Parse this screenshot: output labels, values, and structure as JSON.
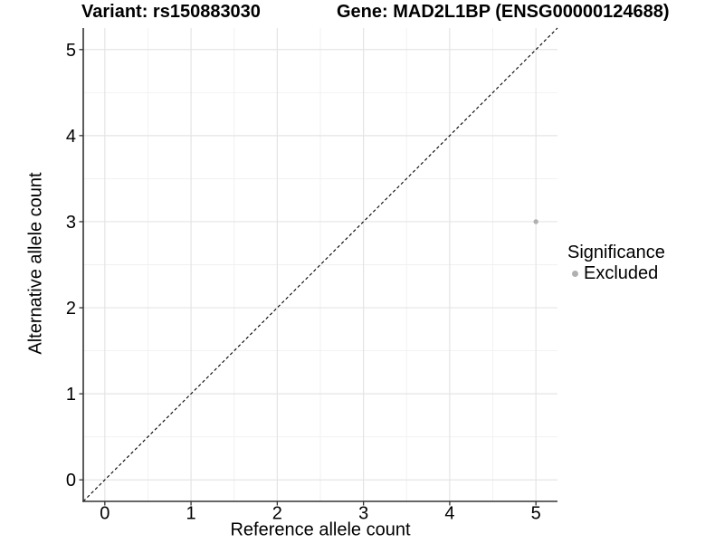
{
  "titles": {
    "variant": "Variant: rs150883030",
    "gene": "Gene: MAD2L1BP (ENSG00000124688)"
  },
  "chart_data": {
    "type": "scatter",
    "title_left": "Variant: rs150883030",
    "title_right": "Gene: MAD2L1BP (ENSG00000124688)",
    "xlabel": "Reference allele count",
    "ylabel": "Alternative allele count",
    "xlim": [
      -0.25,
      5.25
    ],
    "ylim": [
      -0.25,
      5.25
    ],
    "xticks": [
      0,
      1,
      2,
      3,
      4,
      5
    ],
    "yticks": [
      0,
      1,
      2,
      3,
      4,
      5
    ],
    "minor_xticks": [
      0.5,
      1.5,
      2.5,
      3.5,
      4.5
    ],
    "minor_yticks": [
      0.5,
      1.5,
      2.5,
      3.5,
      4.5
    ],
    "grid": true,
    "points": [
      {
        "x": 5,
        "y": 3,
        "series": "Excluded"
      }
    ],
    "identity_line": {
      "style": "dashed",
      "from": [
        -0.25,
        -0.25
      ],
      "to": [
        5.25,
        5.25
      ]
    },
    "legend": {
      "title": "Significance",
      "position": "right",
      "items": [
        {
          "label": "Excluded",
          "color": "#b0b0b0"
        }
      ]
    },
    "colors": {
      "point": "#b0b0b0",
      "grid_major": "#e4e4e4",
      "grid_minor": "#f0f0f0",
      "axis": "#333333",
      "identity": "#000000",
      "text": "#000000",
      "background": "#ffffff"
    }
  }
}
